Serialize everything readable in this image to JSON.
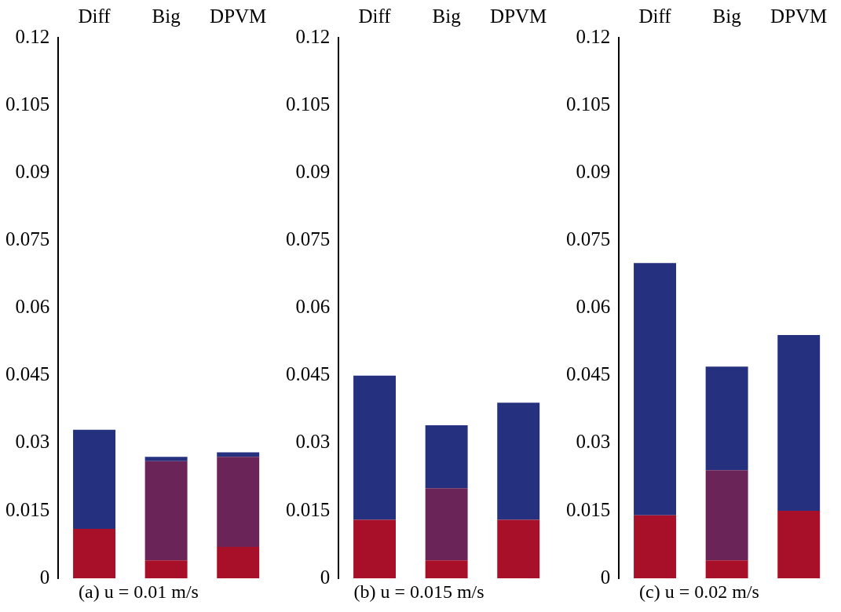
{
  "chart_data": [
    {
      "type": "bar",
      "title": "(a) u = 0.01 m/s",
      "categories": [
        "Diff",
        "Big",
        "DPVM"
      ],
      "series": [
        {
          "color": "#a8102a",
          "values": [
            0.011,
            0.004,
            0.007
          ]
        },
        {
          "color": "#6a2458",
          "values": [
            0,
            0.022,
            0.02
          ]
        },
        {
          "color": "#25307f",
          "values": [
            0.022,
            0.001,
            0.001
          ]
        }
      ],
      "ylim": [
        0,
        0.12
      ],
      "yticks": [
        0,
        0.015,
        0.03,
        0.045,
        0.06,
        0.075,
        0.09,
        0.105,
        0.12
      ],
      "stacked": true,
      "grid": false
    },
    {
      "type": "bar",
      "title": "(b) u = 0.015 m/s",
      "categories": [
        "Diff",
        "Big",
        "DPVM"
      ],
      "series": [
        {
          "color": "#a8102a",
          "values": [
            0.013,
            0.004,
            0.013
          ]
        },
        {
          "color": "#6a2458",
          "values": [
            0,
            0.016,
            0
          ]
        },
        {
          "color": "#25307f",
          "values": [
            0.032,
            0.014,
            0.026
          ]
        }
      ],
      "ylim": [
        0,
        0.12
      ],
      "yticks": [
        0,
        0.015,
        0.03,
        0.045,
        0.06,
        0.075,
        0.09,
        0.105,
        0.12
      ],
      "stacked": true,
      "grid": false
    },
    {
      "type": "bar",
      "title": "(c) u = 0.02 m/s",
      "categories": [
        "Diff",
        "Big",
        "DPVM"
      ],
      "series": [
        {
          "color": "#a8102a",
          "values": [
            0.014,
            0.004,
            0.015
          ]
        },
        {
          "color": "#6a2458",
          "values": [
            0,
            0.02,
            0
          ]
        },
        {
          "color": "#25307f",
          "values": [
            0.056,
            0.023,
            0.039
          ]
        }
      ],
      "ylim": [
        0,
        0.12
      ],
      "yticks": [
        0,
        0.015,
        0.03,
        0.045,
        0.06,
        0.075,
        0.09,
        0.105,
        0.12
      ],
      "stacked": true,
      "grid": false
    }
  ]
}
